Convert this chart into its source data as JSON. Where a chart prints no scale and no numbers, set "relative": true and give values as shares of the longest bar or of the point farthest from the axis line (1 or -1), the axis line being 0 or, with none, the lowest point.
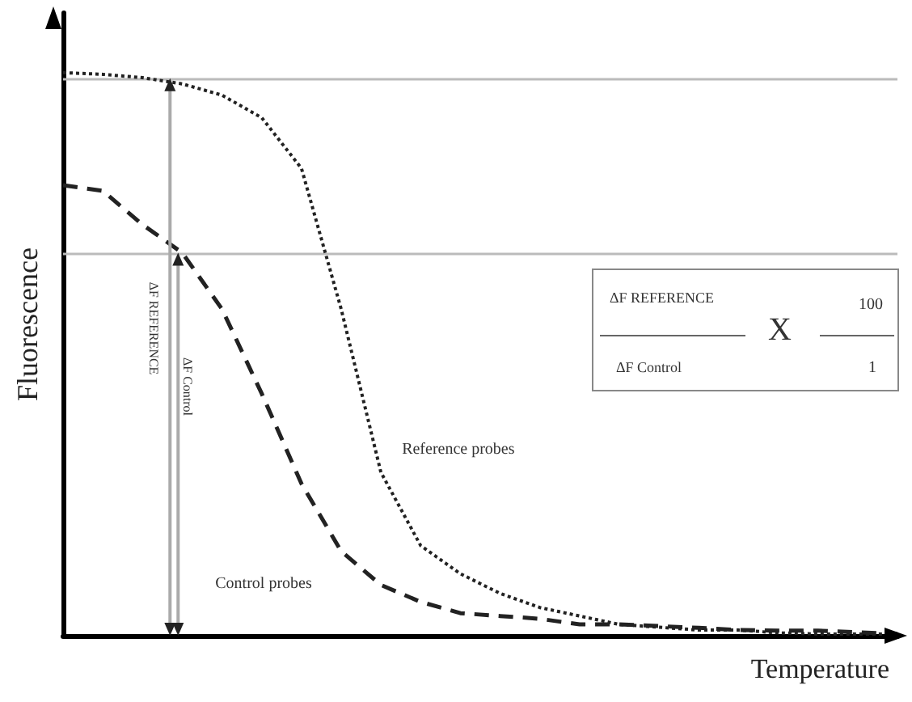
{
  "chart_data": {
    "type": "line",
    "relative": true,
    "xlabel": "Temperature",
    "ylabel": "Fluorescence",
    "categories": [
      null,
      null,
      null,
      null,
      null,
      null,
      null,
      null,
      null,
      null,
      null,
      null,
      null,
      null,
      null,
      null,
      null,
      null,
      null,
      null,
      null,
      null
    ],
    "series": [
      {
        "name": "Reference probes",
        "color": "#222222",
        "line_style": "dotted",
        "values": [
          1.0,
          0.997,
          0.991,
          0.98,
          0.96,
          0.92,
          0.83,
          0.58,
          0.29,
          0.16,
          0.11,
          0.075,
          0.05,
          0.035,
          0.02,
          0.015,
          0.01,
          0.01,
          0.005,
          0.003,
          0.003,
          0.003
        ]
      },
      {
        "name": "Control probes",
        "color": "#222222",
        "line_style": "dashed",
        "values": [
          0.8,
          0.79,
          0.73,
          0.68,
          0.58,
          0.43,
          0.27,
          0.15,
          0.09,
          0.06,
          0.04,
          0.035,
          0.03,
          0.02,
          0.02,
          0.017,
          0.014,
          0.01,
          0.009,
          0.009,
          0.006,
          0.003
        ]
      }
    ],
    "marker": "none",
    "grid": false,
    "legend": false,
    "ref_lines": [
      {
        "axis": "y",
        "value": 0.99,
        "color": "#bbbbbb"
      },
      {
        "axis": "y",
        "value": 0.68,
        "color": "#bbbbbb"
      }
    ],
    "annotations": [
      "ΔF REFERENCE",
      "ΔF Control",
      "ΔF REFERENCE",
      "ΔF Control",
      "X",
      "100",
      "1"
    ]
  }
}
